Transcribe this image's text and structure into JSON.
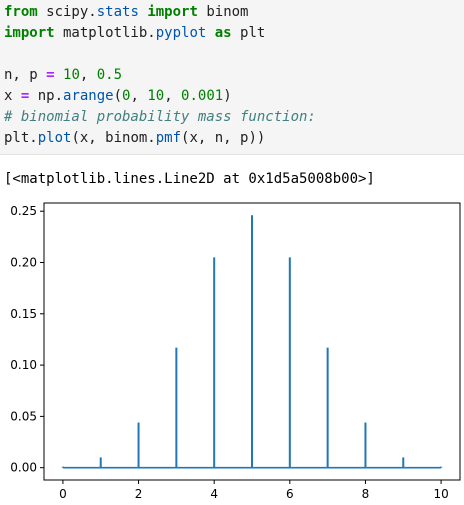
{
  "code": {
    "lines": [
      [
        {
          "t": "from",
          "c": "kw"
        },
        {
          "t": " scipy."
        },
        {
          "t": "stats",
          "c": "attr"
        },
        {
          "t": " "
        },
        {
          "t": "import",
          "c": "kw"
        },
        {
          "t": " binom"
        }
      ],
      [
        {
          "t": "import",
          "c": "kw"
        },
        {
          "t": " matplotlib."
        },
        {
          "t": "pyplot",
          "c": "attr"
        },
        {
          "t": " "
        },
        {
          "t": "as",
          "c": "kw"
        },
        {
          "t": " plt"
        }
      ],
      [],
      [
        {
          "t": "n, p "
        },
        {
          "t": "=",
          "c": "op"
        },
        {
          "t": " "
        },
        {
          "t": "10",
          "c": "num"
        },
        {
          "t": ", "
        },
        {
          "t": "0.5",
          "c": "num"
        }
      ],
      [
        {
          "t": "x "
        },
        {
          "t": "=",
          "c": "op"
        },
        {
          "t": " np."
        },
        {
          "t": "arange",
          "c": "attr"
        },
        {
          "t": "("
        },
        {
          "t": "0",
          "c": "num"
        },
        {
          "t": ", "
        },
        {
          "t": "10",
          "c": "num"
        },
        {
          "t": ", "
        },
        {
          "t": "0.001",
          "c": "num"
        },
        {
          "t": ")"
        }
      ],
      [
        {
          "t": "# binomial probability mass function:",
          "c": "cm"
        }
      ],
      [
        {
          "t": "plt."
        },
        {
          "t": "plot",
          "c": "attr"
        },
        {
          "t": "(x, binom."
        },
        {
          "t": "pmf",
          "c": "attr"
        },
        {
          "t": "(x, n, p))"
        }
      ]
    ]
  },
  "output": {
    "text": "[<matplotlib.lines.Line2D at 0x1d5a5008b00>]"
  },
  "colors": {
    "line": "#1f77b4"
  },
  "chart_data": {
    "type": "line",
    "x": [
      0,
      1,
      2,
      3,
      4,
      5,
      6,
      7,
      8,
      9,
      10
    ],
    "values": [
      0.001,
      0.01,
      0.044,
      0.117,
      0.205,
      0.246,
      0.205,
      0.117,
      0.044,
      0.01,
      0.001
    ],
    "xlim": [
      -0.5,
      10.5
    ],
    "ylim": [
      -0.012,
      0.258
    ],
    "xticks": [
      0,
      2,
      4,
      6,
      8,
      10
    ],
    "xtick_labels": [
      "0",
      "2",
      "4",
      "6",
      "8",
      "10"
    ],
    "yticks": [
      0.0,
      0.05,
      0.1,
      0.15,
      0.2,
      0.25
    ],
    "ytick_labels": [
      "0.00",
      "0.05",
      "0.10",
      "0.15",
      "0.20",
      "0.25"
    ],
    "grid": false
  }
}
